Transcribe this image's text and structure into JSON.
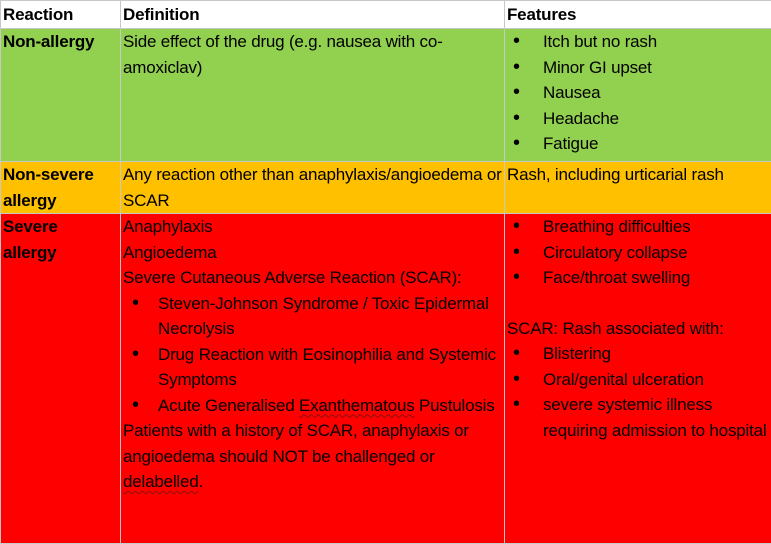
{
  "colors": {
    "non_allergy": "#92D050",
    "non_severe": "#FFC000",
    "severe": "#FF0000"
  },
  "header": {
    "reaction": "Reaction",
    "definition": "Definition",
    "features": "Features"
  },
  "rows": [
    {
      "reaction": "Non-allergy",
      "definition": "Side effect of the drug (e.g. nausea with co-amoxiclav)",
      "features": [
        "Itch but no rash",
        "Minor GI upset",
        "Nausea",
        "Headache",
        "Fatigue"
      ]
    },
    {
      "reaction_line1": "Non-severe",
      "reaction_line2": "allergy",
      "definition": "Any reaction other than anaphylaxis/angioedema or SCAR",
      "features_text": "Rash, including urticarial rash"
    },
    {
      "reaction_line1": "Severe",
      "reaction_line2": "allergy",
      "definition_lines": [
        "Anaphylaxis",
        "Angioedema",
        "Severe Cutaneous Adverse Reaction (SCAR):"
      ],
      "definition_bullets": [
        "Steven-Johnson Syndrome / Toxic Epidermal Necrolysis",
        "Drug Reaction with Eosinophilia and Systemic Symptoms"
      ],
      "definition_bullet3_prefix": "Acute Generalised ",
      "definition_bullet3_underlined": "Exanthematous",
      "definition_bullet3_suffix": " Pustulosis",
      "note_prefix": "Patients with a history of SCAR, anaphylaxis or angioedema should NOT be challenged or ",
      "note_underlined": "delabelled",
      "note_suffix": ".",
      "features": [
        "Breathing difficulties",
        "Circulatory collapse",
        "Face/throat swelling"
      ],
      "scar_heading": "SCAR: Rash associated with:",
      "scar_features": [
        "Blistering",
        "Oral/genital ulceration",
        "severe systemic illness requiring admission to hospital"
      ]
    }
  ]
}
